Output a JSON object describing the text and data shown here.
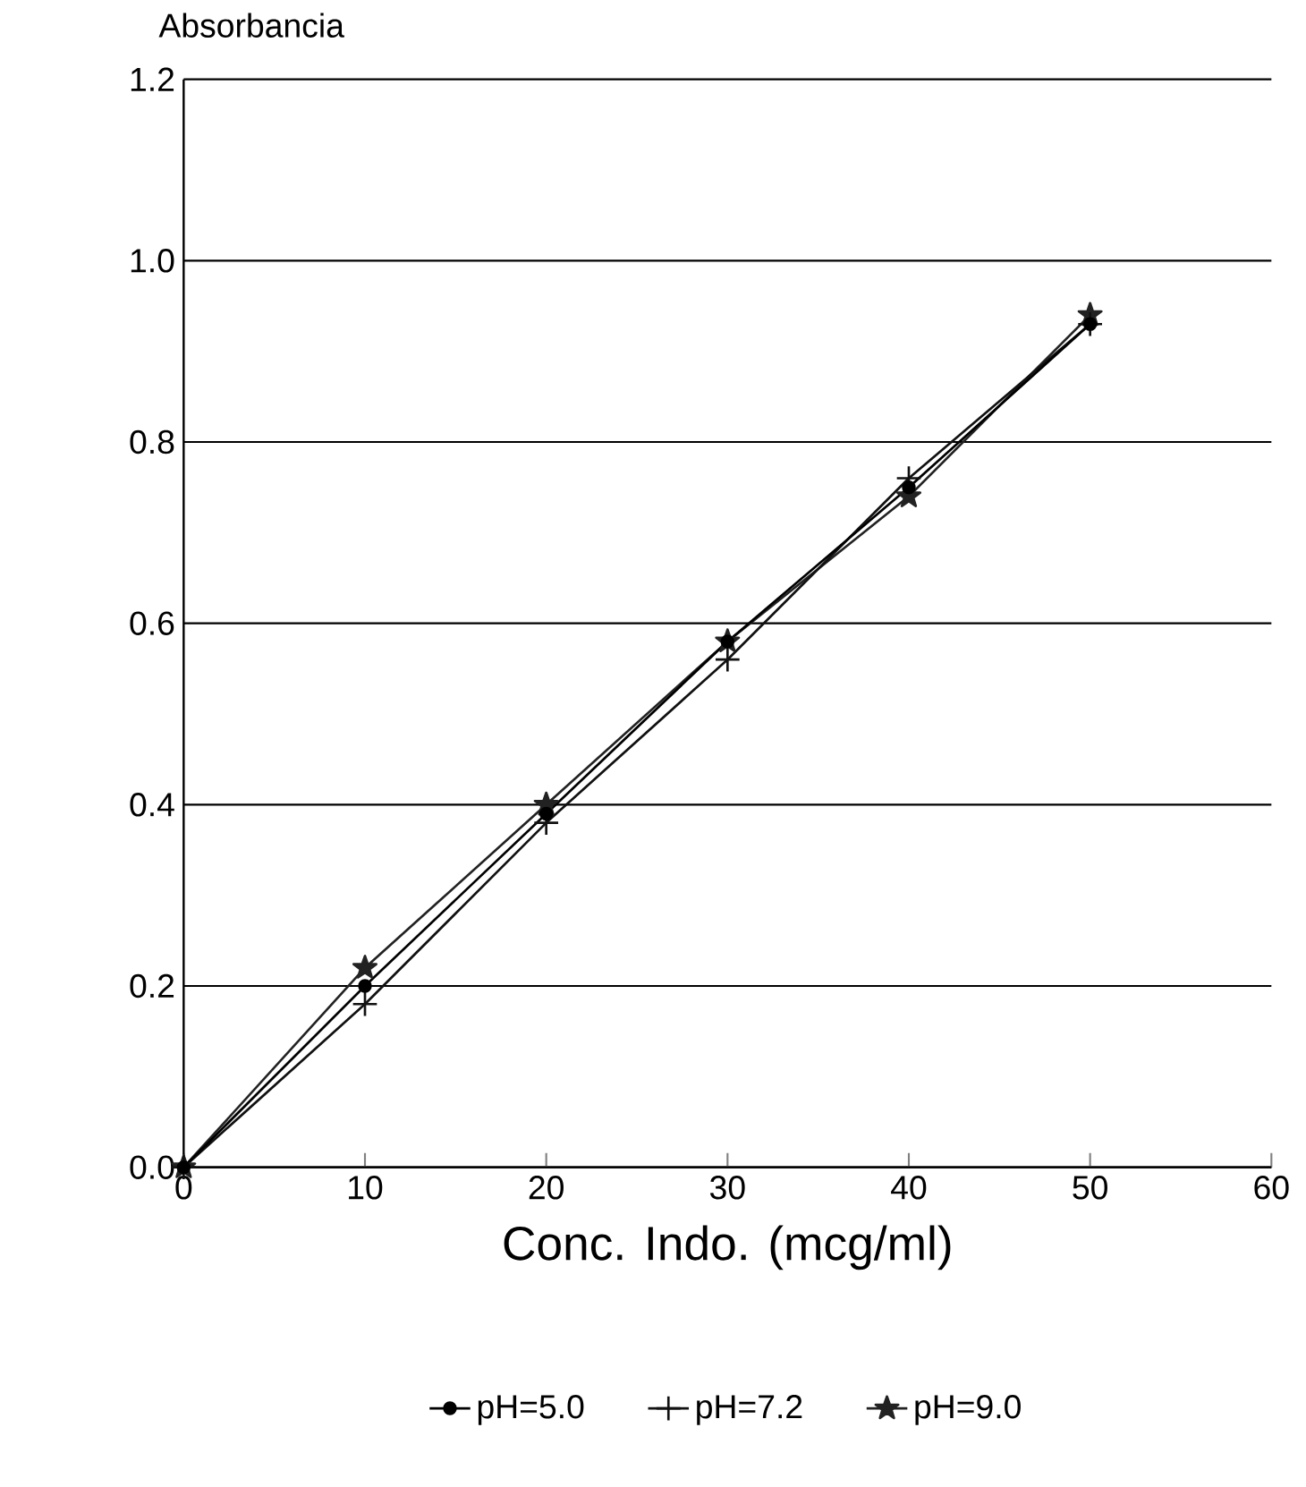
{
  "chart_data": {
    "type": "line",
    "xlabel": "Conc. Indo. (mcg/ml)",
    "ylabel": "Absorbancia",
    "x": [
      0,
      10,
      20,
      30,
      40,
      50
    ],
    "series": [
      {
        "name": "pH=5.0",
        "color": "#000000",
        "marker": "circle",
        "values": [
          0,
          0.2,
          0.39,
          0.58,
          0.75,
          0.93
        ]
      },
      {
        "name": "pH=7.2",
        "color": "#111111",
        "marker": "cross",
        "values": [
          0,
          0.18,
          0.38,
          0.56,
          0.76,
          0.93
        ]
      },
      {
        "name": "pH=9.0",
        "color": "#222222",
        "marker": "star",
        "values": [
          0,
          0.22,
          0.4,
          0.58,
          0.74,
          0.94
        ]
      }
    ],
    "xlim": [
      0,
      60
    ],
    "xticks": [
      0,
      10,
      20,
      30,
      40,
      50,
      60
    ],
    "ylim": [
      0,
      1.2
    ],
    "yticks": [
      {
        "value": 0,
        "label": "0.0"
      },
      {
        "value": 0.2,
        "label": "0.2"
      },
      {
        "value": 0.4,
        "label": "0.4"
      },
      {
        "value": 0.6,
        "label": "0.6"
      },
      {
        "value": 0.8,
        "label": "0.8"
      },
      {
        "value": 1.0,
        "label": "1.0"
      },
      {
        "value": 1.2,
        "label": "1.2"
      }
    ],
    "grid": "y",
    "legend": "bottom",
    "line_style": "solid"
  }
}
